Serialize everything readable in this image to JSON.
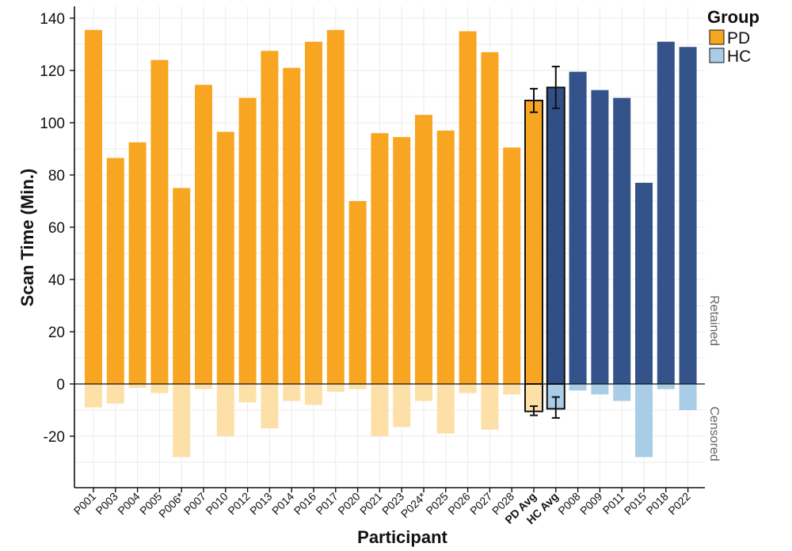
{
  "chart_data": {
    "type": "bar",
    "title": "",
    "xlabel": "Participant",
    "ylabel": "Scan Time (Min.)",
    "ylim": [
      -38,
      143
    ],
    "yticks": [
      140,
      120,
      100,
      80,
      60,
      40,
      20,
      0,
      -20
    ],
    "grid": true,
    "legend": {
      "title": "Group",
      "placement": "top-right",
      "entries": [
        {
          "label": "PD",
          "color": "#F5A623"
        },
        {
          "label": "HC",
          "color": "#A9CDE6"
        }
      ]
    },
    "side_labels": {
      "upper": "Retained",
      "lower": "Censored"
    },
    "colors": {
      "pd_retained": "#F8A621",
      "pd_censored": "#FCE0A8",
      "hc_retained": "#34538A",
      "hc_censored": "#A9CDE6",
      "avg_outline": "#111111"
    },
    "categories": [
      "P001",
      "P003",
      "P004",
      "P005",
      "P006*",
      "P007",
      "P010",
      "P012",
      "P013",
      "P014",
      "P016",
      "P017",
      "P020",
      "P021",
      "P023",
      "P024*",
      "P025",
      "P026",
      "P027",
      "P028",
      "PD Avg",
      "HC Avg",
      "P008",
      "P009",
      "P011",
      "P015",
      "P018",
      "P022"
    ],
    "groups": [
      "PD",
      "PD",
      "PD",
      "PD",
      "PD",
      "PD",
      "PD",
      "PD",
      "PD",
      "PD",
      "PD",
      "PD",
      "PD",
      "PD",
      "PD",
      "PD",
      "PD",
      "PD",
      "PD",
      "PD",
      "PD",
      "HC",
      "HC",
      "HC",
      "HC",
      "HC",
      "HC",
      "HC"
    ],
    "series": [
      {
        "name": "Retained",
        "values": [
          135.5,
          86.5,
          92.5,
          124,
          75,
          114.5,
          96.5,
          109.5,
          127.5,
          121,
          131,
          135.5,
          70,
          96,
          94.5,
          103,
          97,
          135,
          127,
          90.5,
          108.5,
          113.5,
          119.5,
          112.5,
          109.5,
          77,
          131,
          129
        ]
      },
      {
        "name": "Censored",
        "values": [
          -9,
          -7.5,
          -1.5,
          -3.5,
          -28,
          -2,
          -20,
          -7,
          -17,
          -6.5,
          -8,
          -3,
          -2,
          -20,
          -16.5,
          -6.5,
          -19,
          -3.5,
          -17.5,
          -4,
          -10.5,
          -9.5,
          -2.5,
          -4,
          -6.5,
          -28,
          -2,
          -10
        ]
      }
    ],
    "averages": [
      {
        "label": "PD Avg",
        "retained_error": [
          104,
          113
        ],
        "censored_error": [
          -12,
          -8.5
        ]
      },
      {
        "label": "HC Avg",
        "retained_error": [
          105.5,
          121.5
        ],
        "censored_error": [
          -13,
          -5
        ]
      }
    ]
  }
}
